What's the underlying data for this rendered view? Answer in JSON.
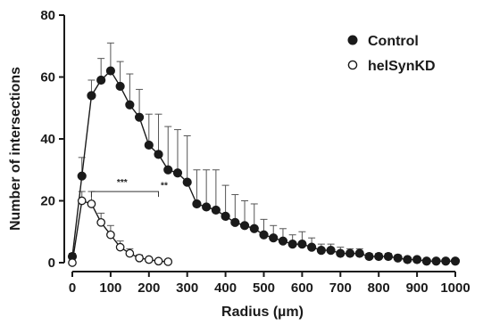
{
  "chart_data": {
    "type": "line",
    "xlabel": "Radius (µm)",
    "ylabel": "Number of intersections",
    "xlim": [
      0,
      1000
    ],
    "ylim": [
      0,
      80
    ],
    "x_ticks": [
      0,
      100,
      200,
      300,
      400,
      500,
      600,
      700,
      800,
      900,
      1000
    ],
    "y_ticks": [
      0,
      20,
      40,
      60,
      80
    ],
    "x_tick_labels": [
      "0",
      "100",
      "200",
      "300",
      "400",
      "500",
      "600",
      "700",
      "800",
      "900",
      "1000"
    ],
    "y_tick_labels": [
      "0",
      "20",
      "40",
      "60",
      "80"
    ],
    "grid": false,
    "legend_position": "top-right",
    "series": [
      {
        "name": "Control",
        "marker": "filled-circle",
        "color": "#1a1a1a",
        "x": [
          0,
          25,
          50,
          75,
          100,
          125,
          150,
          175,
          200,
          225,
          250,
          275,
          300,
          325,
          350,
          375,
          400,
          425,
          450,
          475,
          500,
          525,
          550,
          575,
          600,
          625,
          650,
          675,
          700,
          725,
          750,
          775,
          800,
          825,
          850,
          875,
          900,
          925,
          950,
          975,
          1000
        ],
        "y": [
          2,
          28,
          54,
          59,
          62,
          57,
          51,
          47,
          38,
          35,
          30,
          29,
          26,
          19,
          18,
          17,
          15,
          13,
          12,
          11,
          9,
          8,
          7,
          6,
          6,
          5,
          4,
          4,
          3,
          3,
          3,
          2,
          2,
          2,
          1.5,
          1,
          1,
          0.5,
          0.5,
          0.5,
          0.5
        ],
        "error": [
          1,
          6,
          5,
          7,
          9,
          8,
          10,
          9,
          10,
          13,
          14,
          14,
          15,
          11,
          12,
          13,
          10,
          9,
          8,
          8,
          5,
          4,
          4,
          3,
          4,
          3,
          2,
          2,
          2,
          1.5,
          1.5,
          1,
          1,
          1,
          1,
          0.5,
          0.5,
          0.5,
          0.5,
          0.5,
          0.5
        ]
      },
      {
        "name": "helSynKD",
        "marker": "open-circle",
        "color": "#1a1a1a",
        "x": [
          0,
          25,
          50,
          75,
          100,
          125,
          150,
          175,
          200,
          225,
          250
        ],
        "y": [
          0,
          20,
          19,
          13,
          9,
          5,
          3,
          1.5,
          1,
          0.5,
          0.3
        ],
        "error": [
          0.5,
          3,
          4,
          3,
          3,
          2,
          1.5,
          1,
          0.5,
          0.3,
          0.2
        ]
      }
    ],
    "annotations": [
      {
        "text": "***",
        "x": 130,
        "y": 25
      },
      {
        "text": "**",
        "x": 240,
        "y": 24
      }
    ]
  }
}
